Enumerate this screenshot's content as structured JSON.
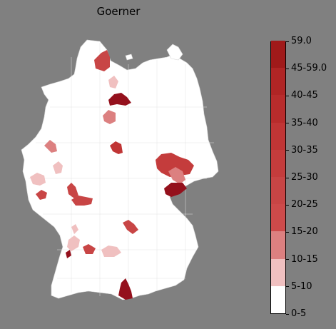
{
  "title": "Goerner",
  "legend": {
    "labels": [
      "0-5",
      "5-10",
      "10-15",
      "15-20",
      "20-25",
      "25-30",
      "30-35",
      "35-40",
      "40-45",
      "45-59.0",
      "59.0"
    ],
    "colors": [
      "#ffffff",
      "#f0c0c0",
      "#dc8080",
      "#cd4a4a",
      "#c84545",
      "#c43c3c",
      "#c03535",
      "#b82c2c",
      "#b02525",
      "#a01a1a",
      "#94101c"
    ]
  },
  "map": {
    "country": "Germany",
    "land_color": "#ffffff",
    "border_color": "#cccccc"
  }
}
